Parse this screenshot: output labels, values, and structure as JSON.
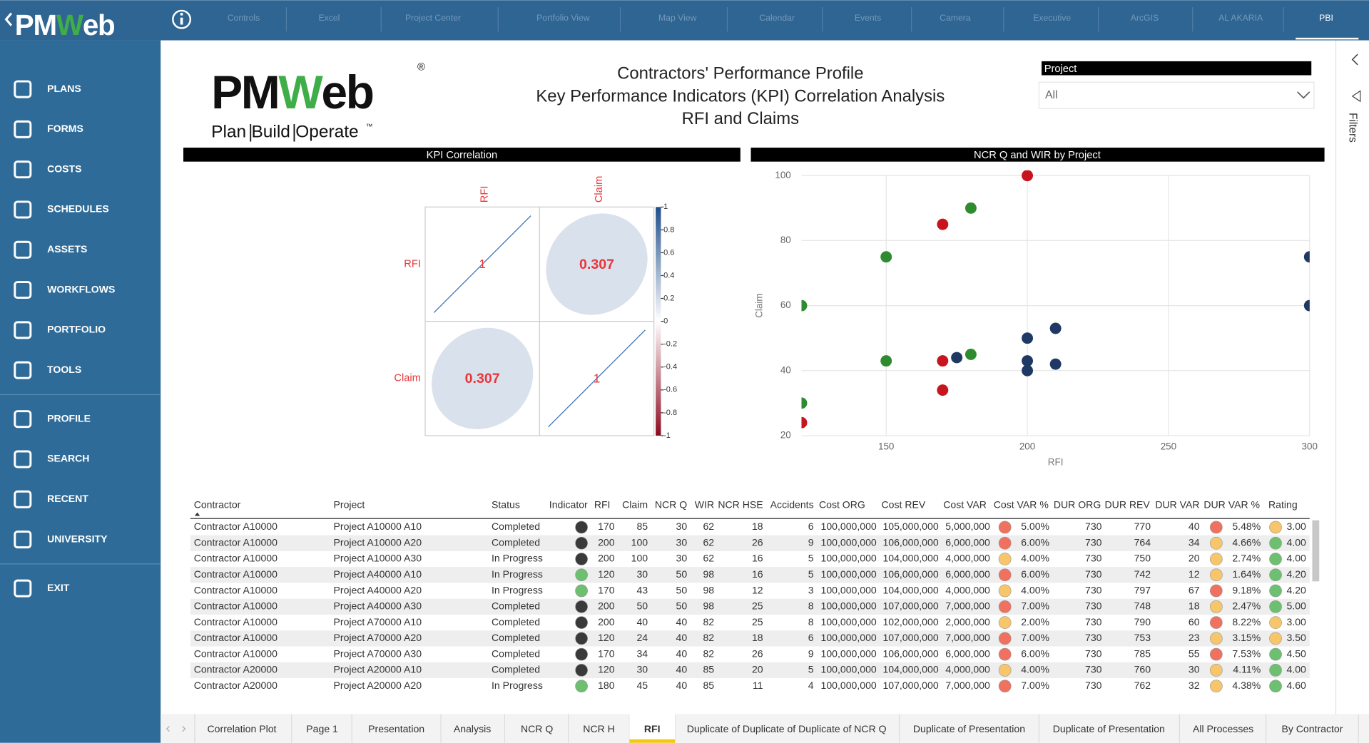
{
  "app_logo": {
    "parts": [
      "PM",
      "W",
      "eb"
    ]
  },
  "top_tabs": [
    "Controls",
    "Excel",
    "Project Center",
    "Portfolio View",
    "Map View",
    "Calendar",
    "Events",
    "Camera",
    "Executive",
    "ArcGIS",
    "AL AKARIA",
    "PBI"
  ],
  "sidebar": [
    "PLANS",
    "FORMS",
    "COSTS",
    "SCHEDULES",
    "ASSETS",
    "WORKFLOWS",
    "PORTFOLIO",
    "TOOLS",
    "PROFILE",
    "SEARCH",
    "RECENT",
    "UNIVERSITY",
    "EXIT"
  ],
  "report_logo": {
    "parts": [
      "PM",
      "W",
      "eb"
    ],
    "mark": "®",
    "tagline": [
      "Plan",
      "Build",
      "Operate"
    ],
    "tm": "™"
  },
  "title": [
    "Contractors' Performance Profile",
    "Key Performance Indicators (KPI) Correlation Analysis",
    "RFI and Claims"
  ],
  "filter": {
    "label": "Project",
    "value": "All",
    "pane": "Filters"
  },
  "chart_data": [
    {
      "type": "correlation",
      "title": "KPI Correlation",
      "variables": [
        "RFI",
        "Claim"
      ],
      "matrix": [
        [
          1,
          0.307
        ],
        [
          0.307,
          1
        ]
      ],
      "colorbar_lim": [
        -1,
        1
      ],
      "colorbar_ticks": [
        1,
        0.8,
        0.6,
        0.4,
        0.2,
        0,
        -0.2,
        -0.4,
        -0.6,
        -0.8,
        -1
      ],
      "colors": {
        "negative": "#8b0a1f",
        "zero": "#ffffff",
        "positive": "#1f4e8c",
        "label": "#e8363a",
        "line": "#3b6fb0"
      }
    },
    {
      "type": "scatter",
      "title": "NCR Q and WIR by Project",
      "x_label": "RFI",
      "y_label": "Claim",
      "xlim": [
        120,
        300
      ],
      "xticks": [
        150,
        200,
        250,
        300
      ],
      "ylim": [
        20,
        100
      ],
      "yticks": [
        20,
        40,
        60,
        80,
        100
      ],
      "grid": true,
      "series": [
        {
          "color": "#c8141e",
          "x": [
            200,
            170,
            170,
            170,
            120
          ],
          "values": [
            100,
            85,
            43,
            34,
            24
          ]
        },
        {
          "color": "#2e8b2e",
          "x": [
            180,
            150,
            120,
            150,
            180,
            120
          ],
          "values": [
            90,
            75,
            60,
            43,
            45,
            30
          ]
        },
        {
          "color": "#1f3864",
          "x": [
            300,
            300,
            210,
            200,
            175,
            200,
            200,
            210
          ],
          "values": [
            75,
            60,
            53,
            50,
            44,
            43,
            40,
            42
          ]
        }
      ]
    }
  ],
  "table": {
    "headers": [
      "Contractor",
      "Project",
      "Status",
      "Indicator",
      "RFI",
      "Claim",
      "NCR Q",
      "WIR",
      "NCR HSE",
      "Accidents",
      "Cost ORG",
      "Cost REV",
      "Cost VAR",
      "Cost VAR %",
      "DUR ORG",
      "DUR REV",
      "DUR VAR",
      "DUR VAR %",
      "Rating"
    ],
    "rows": [
      {
        "cells": [
          "Contractor A10000",
          "Project A10000 A10",
          "Completed",
          "170",
          "85",
          "30",
          "62",
          "18",
          "6",
          "100,000,000",
          "105,000,000",
          "5,000,000",
          "5.00%",
          "730",
          "770",
          "40",
          "5.48%",
          "3.00"
        ],
        "dots": [
          "#3a3a3a",
          "#f0715f",
          "#f0715f",
          "#f7c66b"
        ]
      },
      {
        "cells": [
          "Contractor A10000",
          "Project A10000 A20",
          "Completed",
          "200",
          "100",
          "30",
          "62",
          "26",
          "9",
          "100,000,000",
          "106,000,000",
          "6,000,000",
          "6.00%",
          "730",
          "764",
          "34",
          "4.66%",
          "4.00"
        ],
        "dots": [
          "#3a3a3a",
          "#f0715f",
          "#f7c66b",
          "#6cc070"
        ]
      },
      {
        "cells": [
          "Contractor A10000",
          "Project A10000 A30",
          "In Progress",
          "200",
          "100",
          "30",
          "62",
          "16",
          "5",
          "100,000,000",
          "104,000,000",
          "4,000,000",
          "4.00%",
          "730",
          "750",
          "20",
          "2.74%",
          "4.00"
        ],
        "dots": [
          "#3a3a3a",
          "#f7c66b",
          "#f7c66b",
          "#6cc070"
        ]
      },
      {
        "cells": [
          "Contractor A10000",
          "Project A40000 A10",
          "In Progress",
          "120",
          "30",
          "50",
          "98",
          "16",
          "5",
          "100,000,000",
          "106,000,000",
          "6,000,000",
          "6.00%",
          "730",
          "742",
          "12",
          "1.64%",
          "4.20"
        ],
        "dots": [
          "#6cc070",
          "#f0715f",
          "#f7c66b",
          "#6cc070"
        ]
      },
      {
        "cells": [
          "Contractor A10000",
          "Project A40000 A20",
          "In Progress",
          "170",
          "43",
          "50",
          "98",
          "12",
          "3",
          "100,000,000",
          "104,000,000",
          "4,000,000",
          "4.00%",
          "730",
          "797",
          "67",
          "9.18%",
          "4.20"
        ],
        "dots": [
          "#6cc070",
          "#f7c66b",
          "#f0715f",
          "#6cc070"
        ]
      },
      {
        "cells": [
          "Contractor A10000",
          "Project A40000 A30",
          "Completed",
          "200",
          "50",
          "50",
          "98",
          "25",
          "8",
          "100,000,000",
          "107,000,000",
          "7,000,000",
          "7.00%",
          "730",
          "748",
          "18",
          "2.47%",
          "5.00"
        ],
        "dots": [
          "#3a3a3a",
          "#f0715f",
          "#f7c66b",
          "#6cc070"
        ]
      },
      {
        "cells": [
          "Contractor A10000",
          "Project A70000 A10",
          "Completed",
          "200",
          "40",
          "40",
          "82",
          "25",
          "8",
          "100,000,000",
          "102,000,000",
          "2,000,000",
          "2.00%",
          "730",
          "790",
          "60",
          "8.22%",
          "3.00"
        ],
        "dots": [
          "#3a3a3a",
          "#f7c66b",
          "#f0715f",
          "#f7c66b"
        ]
      },
      {
        "cells": [
          "Contractor A10000",
          "Project A70000 A20",
          "Completed",
          "120",
          "24",
          "40",
          "82",
          "18",
          "6",
          "100,000,000",
          "107,000,000",
          "7,000,000",
          "7.00%",
          "730",
          "753",
          "23",
          "3.15%",
          "3.50"
        ],
        "dots": [
          "#3a3a3a",
          "#f0715f",
          "#f7c66b",
          "#f7c66b"
        ]
      },
      {
        "cells": [
          "Contractor A10000",
          "Project A70000 A30",
          "Completed",
          "170",
          "34",
          "40",
          "82",
          "26",
          "9",
          "100,000,000",
          "106,000,000",
          "6,000,000",
          "6.00%",
          "730",
          "785",
          "55",
          "7.53%",
          "4.50"
        ],
        "dots": [
          "#3a3a3a",
          "#f0715f",
          "#f0715f",
          "#6cc070"
        ]
      },
      {
        "cells": [
          "Contractor A20000",
          "Project A20000 A10",
          "Completed",
          "120",
          "30",
          "40",
          "85",
          "20",
          "5",
          "100,000,000",
          "104,000,000",
          "4,000,000",
          "4.00%",
          "730",
          "760",
          "30",
          "4.11%",
          "4.00"
        ],
        "dots": [
          "#3a3a3a",
          "#f7c66b",
          "#f7c66b",
          "#6cc070"
        ]
      },
      {
        "cells": [
          "Contractor A20000",
          "Project A20000 A20",
          "In Progress",
          "180",
          "45",
          "40",
          "85",
          "11",
          "4",
          "100,000,000",
          "107,000,000",
          "7,000,000",
          "7.00%",
          "730",
          "762",
          "32",
          "4.38%",
          "4.60"
        ],
        "dots": [
          "#6cc070",
          "#f0715f",
          "#f7c66b",
          "#6cc070"
        ]
      }
    ]
  },
  "page_tabs": [
    "Correlation Plot",
    "Page 1",
    "Presentation",
    "Analysis",
    "NCR Q",
    "NCR H",
    "RFI",
    "Duplicate of Duplicate of Duplicate of NCR Q",
    "Duplicate of Presentation",
    "Duplicate of Presentation",
    "All Processes",
    "By Contractor"
  ],
  "active_page_tab": 6
}
